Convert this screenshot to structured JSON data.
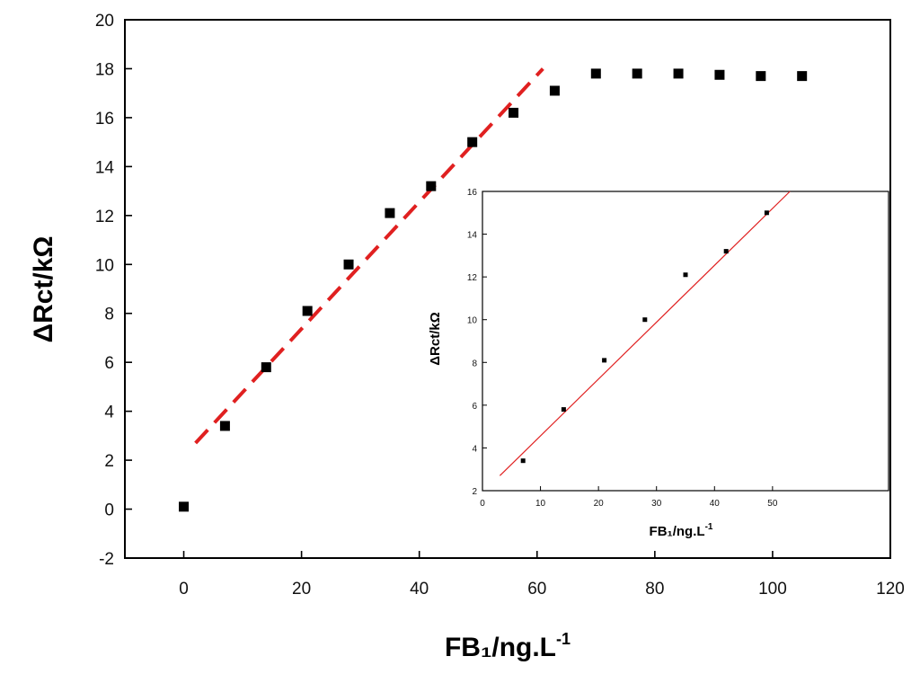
{
  "chart_data": [
    {
      "type": "scatter",
      "xlabel": "FB₁/ng.L",
      "xlabel_superscript": "-1",
      "ylabel": "ΔRct/kΩ",
      "xlim": [
        -10,
        120
      ],
      "ylim": [
        -2,
        20
      ],
      "x_ticks": [
        0,
        20,
        40,
        60,
        80,
        100,
        120
      ],
      "y_ticks": [
        -2,
        0,
        2,
        4,
        6,
        8,
        10,
        12,
        14,
        16,
        18,
        20
      ],
      "grid": false,
      "series": [
        {
          "kind": "points",
          "marker": "square",
          "color": "#000000",
          "x": [
            0,
            7,
            14,
            21,
            28,
            35,
            42,
            49,
            56,
            63,
            70,
            77,
            84,
            91,
            98,
            105
          ],
          "y": [
            0.1,
            3.4,
            5.8,
            8.1,
            10.0,
            12.1,
            13.2,
            15.0,
            16.2,
            17.1,
            17.8,
            17.8,
            17.8,
            17.75,
            17.7,
            17.7
          ]
        },
        {
          "kind": "fit-line",
          "style": "dashed",
          "color": "#e02020",
          "x": [
            2,
            61
          ],
          "y": [
            2.7,
            18.0
          ]
        }
      ]
    },
    {
      "type": "scatter",
      "xlabel": "FB₁/ng.L",
      "xlabel_superscript": "-1",
      "ylabel": "ΔRct/kΩ",
      "xlim": [
        0,
        70
      ],
      "ylim": [
        2,
        16
      ],
      "x_ticks": [
        0,
        10,
        20,
        30,
        40,
        50
      ],
      "y_ticks": [
        2,
        4,
        6,
        8,
        10,
        12,
        14,
        16
      ],
      "grid": false,
      "series": [
        {
          "kind": "points",
          "marker": "square",
          "color": "#000000",
          "x": [
            7,
            14,
            21,
            28,
            35,
            42,
            49
          ],
          "y": [
            3.4,
            5.8,
            8.1,
            10.0,
            12.1,
            13.2,
            15.0
          ]
        },
        {
          "kind": "fit-line",
          "style": "solid",
          "color": "#e02020",
          "x": [
            3,
            53
          ],
          "y": [
            2.7,
            16.0
          ]
        }
      ]
    }
  ]
}
